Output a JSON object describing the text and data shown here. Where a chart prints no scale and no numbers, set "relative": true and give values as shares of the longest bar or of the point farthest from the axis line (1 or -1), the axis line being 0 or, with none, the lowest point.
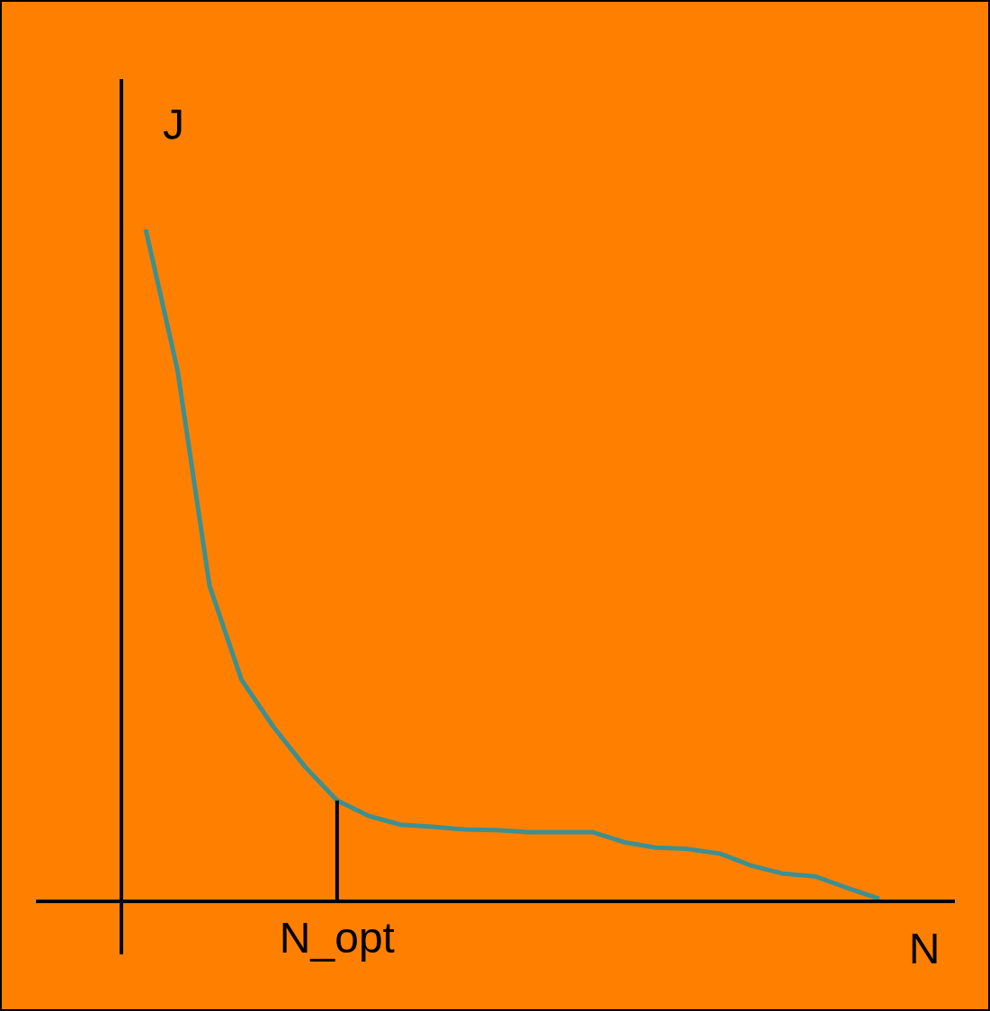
{
  "chart_data": {
    "type": "line",
    "relative": true,
    "xlabel": "N",
    "ylabel": "J",
    "categories": [
      null,
      null,
      null,
      null,
      null,
      null,
      null,
      null,
      null,
      null,
      null,
      null,
      null,
      null,
      null,
      null,
      null,
      null,
      null,
      null,
      null,
      null,
      null,
      null
    ],
    "series": [
      {
        "color": "#3f8f8f",
        "values": [
          1,
          0.79,
          0.47,
          0.33,
          0.26,
          0.2,
          0.15,
          0.127,
          0.114,
          0.111,
          0.107,
          0.106,
          0.103,
          0.103,
          0.103,
          0.088,
          0.08,
          0.078,
          0.071,
          0.053,
          0.041,
          0.037,
          0.02,
          0.004
        ]
      }
    ],
    "annotations": [
      {
        "text": "N_opt",
        "y": 0.15
      }
    ]
  }
}
